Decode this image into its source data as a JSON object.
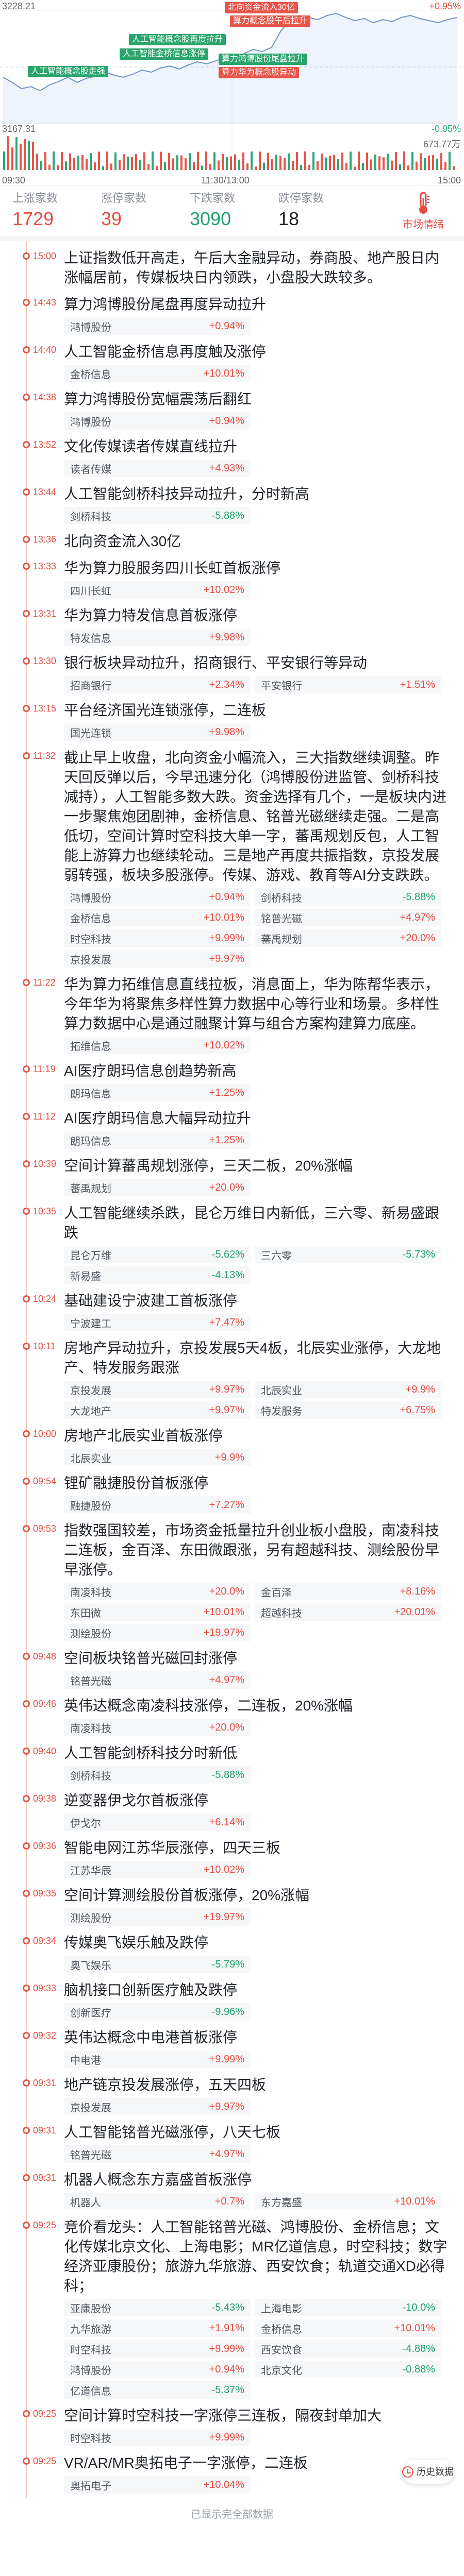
{
  "chart": {
    "y_top": "3228.21",
    "y_bottom": "3167.31",
    "right_top": "+0.95%",
    "right_bottom": "-0.95%",
    "volume_label": "673.77万",
    "times": [
      "09:30",
      "11:30/13:00",
      "15:00"
    ],
    "tags": [
      {
        "text": "北向资金流入30亿",
        "color": "red"
      },
      {
        "text": "算力概念股午后拉升",
        "color": "red"
      },
      {
        "text": "人工智能概念股再度拉升",
        "color": "green"
      },
      {
        "text": "人工智能金桥信息涨停",
        "color": "green"
      },
      {
        "text": "人工智能概念股走强",
        "color": "green"
      },
      {
        "text": "算力鸿博股份尾盘拉升",
        "color": "green"
      },
      {
        "text": "算力华为概念股异动",
        "color": "red"
      }
    ]
  },
  "stats": [
    {
      "label": "上涨家数",
      "value": "1729",
      "color": "red"
    },
    {
      "label": "涨停家数",
      "value": "39",
      "color": "red"
    },
    {
      "label": "下跌家数",
      "value": "3090",
      "color": "green"
    },
    {
      "label": "跌停家数",
      "value": "18",
      "color": "black"
    }
  ],
  "sentiment": {
    "label": "市场情绪",
    "icon": "thermometer-icon"
  },
  "entries": [
    {
      "time": "15:00",
      "text": "上证指数低开高走，午后大金融异动，券商股、地产股日内涨幅居前，传媒板块日内领跌，小盘股大跌较多。",
      "stocks": []
    },
    {
      "time": "14:43",
      "text": "算力鸿博股份尾盘再度异动拉升",
      "stocks": [
        {
          "name": "鸿博股份",
          "chg": "+0.94%",
          "dir": "up"
        }
      ]
    },
    {
      "time": "14:40",
      "text": "人工智能金桥信息再度触及涨停",
      "stocks": [
        {
          "name": "金桥信息",
          "chg": "+10.01%",
          "dir": "up"
        }
      ]
    },
    {
      "time": "14:38",
      "text": "算力鸿博股份宽幅震荡后翻红",
      "stocks": [
        {
          "name": "鸿博股份",
          "chg": "+0.94%",
          "dir": "up"
        }
      ]
    },
    {
      "time": "13:52",
      "text": "文化传媒读者传媒直线拉升",
      "stocks": [
        {
          "name": "读者传媒",
          "chg": "+4.93%",
          "dir": "up"
        }
      ]
    },
    {
      "time": "13:44",
      "text": "人工智能剑桥科技异动拉升，分时新高",
      "stocks": [
        {
          "name": "剑桥科技",
          "chg": "-5.88%",
          "dir": "down"
        }
      ]
    },
    {
      "time": "13:36",
      "text": "北向资金流入30亿",
      "stocks": []
    },
    {
      "time": "13:33",
      "text": "华为算力股服务四川长虹首板涨停",
      "stocks": [
        {
          "name": "四川长虹",
          "chg": "+10.02%",
          "dir": "up"
        }
      ]
    },
    {
      "time": "13:31",
      "text": "华为算力特发信息首板涨停",
      "stocks": [
        {
          "name": "特发信息",
          "chg": "+9.98%",
          "dir": "up"
        }
      ]
    },
    {
      "time": "13:30",
      "text": "银行板块异动拉升，招商银行、平安银行等异动",
      "stocks": [
        {
          "name": "招商银行",
          "chg": "+2.34%",
          "dir": "up"
        },
        {
          "name": "平安银行",
          "chg": "+1.51%",
          "dir": "up"
        }
      ]
    },
    {
      "time": "13:15",
      "text": "平台经济国光连锁涨停，二连板",
      "stocks": [
        {
          "name": "国光连锁",
          "chg": "+9.98%",
          "dir": "up"
        }
      ]
    },
    {
      "time": "11:32",
      "text": "截止早上收盘，北向资金小幅流入，三大指数继续调整。昨天回反弹以后，今早迅速分化（鸿博股份进监管、剑桥科技减持），人工智能多数大跌。资金选择有几个，一是板块内进一步聚焦炮团剧神，金桥信息、铭普光磁继续走强。二是高低切，空间计算时空科技大单一字，蕃禹规划反包，人工智能上游算力也继续轮动。三是地产再度共振指数，京投发展弱转强，板块多股涨停。传媒、游戏、教育等AI分支跌跌。",
      "stocks": [
        {
          "name": "鸿博股份",
          "chg": "+0.94%",
          "dir": "up"
        },
        {
          "name": "剑桥科技",
          "chg": "-5.88%",
          "dir": "down"
        },
        {
          "name": "金桥信息",
          "chg": "+10.01%",
          "dir": "up"
        },
        {
          "name": "铭普光磁",
          "chg": "+4.97%",
          "dir": "up"
        },
        {
          "name": "时空科技",
          "chg": "+9.99%",
          "dir": "up"
        },
        {
          "name": "蕃禹规划",
          "chg": "+20.0%",
          "dir": "up"
        },
        {
          "name": "京投发展",
          "chg": "+9.97%",
          "dir": "up"
        }
      ]
    },
    {
      "time": "11:22",
      "text": "华为算力拓维信息直线拉板，消息面上，华为陈帮华表示，今年华为将聚焦多样性算力数据中心等行业和场景。多样性算力数据中心是通过融聚计算与组合方案构建算力底座。",
      "stocks": [
        {
          "name": "拓维信息",
          "chg": "+10.02%",
          "dir": "up"
        }
      ]
    },
    {
      "time": "11:19",
      "text": "AI医疗朗玛信息创趋势新高",
      "stocks": [
        {
          "name": "朗玛信息",
          "chg": "+1.25%",
          "dir": "up"
        }
      ]
    },
    {
      "time": "11:12",
      "text": "AI医疗朗玛信息大幅异动拉升",
      "stocks": [
        {
          "name": "朗玛信息",
          "chg": "+1.25%",
          "dir": "up"
        }
      ]
    },
    {
      "time": "10:39",
      "text": "空间计算蕃禹规划涨停，三天二板，20%涨幅",
      "stocks": [
        {
          "name": "蕃禹规划",
          "chg": "+20.0%",
          "dir": "up"
        }
      ]
    },
    {
      "time": "10:35",
      "text": "人工智能继续杀跌，昆仑万维日内新低，三六零、新易盛跟跌",
      "stocks": [
        {
          "name": "昆仑万维",
          "chg": "-5.62%",
          "dir": "down"
        },
        {
          "name": "三六零",
          "chg": "-5.73%",
          "dir": "down"
        },
        {
          "name": "新易盛",
          "chg": "-4.13%",
          "dir": "down"
        }
      ]
    },
    {
      "time": "10:24",
      "text": "基础建设宁波建工首板涨停",
      "stocks": [
        {
          "name": "宁波建工",
          "chg": "+7.47%",
          "dir": "up"
        }
      ]
    },
    {
      "time": "10:11",
      "text": "房地产异动拉升，京投发展5天4板，北辰实业涨停，大龙地产、特发服务跟涨",
      "stocks": [
        {
          "name": "京投发展",
          "chg": "+9.97%",
          "dir": "up"
        },
        {
          "name": "北辰实业",
          "chg": "+9.9%",
          "dir": "up"
        },
        {
          "name": "大龙地产",
          "chg": "+9.97%",
          "dir": "up"
        },
        {
          "name": "特发服务",
          "chg": "+6.75%",
          "dir": "up"
        }
      ]
    },
    {
      "time": "10:00",
      "text": "房地产北辰实业首板涨停",
      "stocks": [
        {
          "name": "北辰实业",
          "chg": "+9.9%",
          "dir": "up"
        }
      ]
    },
    {
      "time": "09:54",
      "text": "锂矿融捷股份首板涨停",
      "stocks": [
        {
          "name": "融捷股份",
          "chg": "+7.27%",
          "dir": "up"
        }
      ]
    },
    {
      "time": "09:53",
      "text": "指数强国较差，市场资金抵量拉升创业板小盘股，南凌科技二连板，金百泽、东田微跟涨，另有超越科技、测绘股份早早涨停。",
      "stocks": [
        {
          "name": "南凌科技",
          "chg": "+20.0%",
          "dir": "up"
        },
        {
          "name": "金百泽",
          "chg": "+8.16%",
          "dir": "up"
        },
        {
          "name": "东田微",
          "chg": "+10.01%",
          "dir": "up"
        },
        {
          "name": "超越科技",
          "chg": "+20.01%",
          "dir": "up"
        },
        {
          "name": "测绘股份",
          "chg": "+19.97%",
          "dir": "up"
        }
      ]
    },
    {
      "time": "09:48",
      "text": "空间板块铭普光磁回封涨停",
      "stocks": [
        {
          "name": "铭普光磁",
          "chg": "+4.97%",
          "dir": "up"
        }
      ]
    },
    {
      "time": "09:46",
      "text": "英伟达概念南凌科技涨停，二连板，20%涨幅",
      "stocks": [
        {
          "name": "南凌科技",
          "chg": "+20.0%",
          "dir": "up"
        }
      ]
    },
    {
      "time": "09:40",
      "text": "人工智能剑桥科技分时新低",
      "stocks": [
        {
          "name": "剑桥科技",
          "chg": "-5.88%",
          "dir": "down"
        }
      ]
    },
    {
      "time": "09:38",
      "text": "逆变器伊戈尔首板涨停",
      "stocks": [
        {
          "name": "伊戈尔",
          "chg": "+6.14%",
          "dir": "up"
        }
      ]
    },
    {
      "time": "09:36",
      "text": "智能电网江苏华辰涨停，四天三板",
      "stocks": [
        {
          "name": "江苏华辰",
          "chg": "+10.02%",
          "dir": "up"
        }
      ]
    },
    {
      "time": "09:35",
      "text": "空间计算测绘股份首板涨停，20%涨幅",
      "stocks": [
        {
          "name": "测绘股份",
          "chg": "+19.97%",
          "dir": "up"
        }
      ]
    },
    {
      "time": "09:34",
      "text": "传媒奥飞娱乐触及跌停",
      "stocks": [
        {
          "name": "奥飞娱乐",
          "chg": "-5.79%",
          "dir": "down"
        }
      ]
    },
    {
      "time": "09:33",
      "text": "脑机接口创新医疗触及跌停",
      "stocks": [
        {
          "name": "创新医疗",
          "chg": "-9.96%",
          "dir": "down"
        }
      ]
    },
    {
      "time": "09:32",
      "text": "英伟达概念中电港首板涨停",
      "stocks": [
        {
          "name": "中电港",
          "chg": "+9.99%",
          "dir": "up"
        }
      ]
    },
    {
      "time": "09:31",
      "text": "地产链京投发展涨停，五天四板",
      "stocks": [
        {
          "name": "京投发展",
          "chg": "+9.97%",
          "dir": "up"
        }
      ]
    },
    {
      "time": "09:31",
      "text": "人工智能铭普光磁涨停，八天七板",
      "stocks": [
        {
          "name": "铭普光磁",
          "chg": "+4.97%",
          "dir": "up"
        }
      ]
    },
    {
      "time": "09:31",
      "text": "机器人概念东方嘉盛首板涨停",
      "stocks": [
        {
          "name": "机器人",
          "chg": "+0.7%",
          "dir": "up"
        },
        {
          "name": "东方嘉盛",
          "chg": "+10.01%",
          "dir": "up"
        }
      ]
    },
    {
      "time": "09:25",
      "text": "竞价看龙头：人工智能铭普光磁、鸿博股份、金桥信息；文化传媒北京文化、上海电影；MR亿道信息，时空科技；数字经济亚康股份；旅游九华旅游、西安饮食；轨道交通XD必得科；",
      "stocks": [
        {
          "name": "亚康股份",
          "chg": "-5.43%",
          "dir": "down"
        },
        {
          "name": "上海电影",
          "chg": "-10.0%",
          "dir": "down"
        },
        {
          "name": "九华旅游",
          "chg": "+1.91%",
          "dir": "up"
        },
        {
          "name": "金桥信息",
          "chg": "+10.01%",
          "dir": "up"
        },
        {
          "name": "时空科技",
          "chg": "+9.99%",
          "dir": "up"
        },
        {
          "name": "西安饮食",
          "chg": "-4.88%",
          "dir": "down"
        },
        {
          "name": "鸿博股份",
          "chg": "+0.94%",
          "dir": "up"
        },
        {
          "name": "北京文化",
          "chg": "-0.88%",
          "dir": "down"
        },
        {
          "name": "亿道信息",
          "chg": "-5.37%",
          "dir": "down"
        }
      ]
    },
    {
      "time": "09:25",
      "text": "空间计算时空科技一字涨停三连板，隔夜封单加大",
      "stocks": [
        {
          "name": "时空科技",
          "chg": "+9.99%",
          "dir": "up"
        }
      ]
    },
    {
      "time": "09:25",
      "text": "VR/AR/MR奥拓电子一字涨停，二连板",
      "stocks": [
        {
          "name": "奥拓电子",
          "chg": "+10.04%",
          "dir": "up"
        }
      ]
    }
  ],
  "history_button": "历史数据",
  "footer_text": "已显示完全部数据"
}
